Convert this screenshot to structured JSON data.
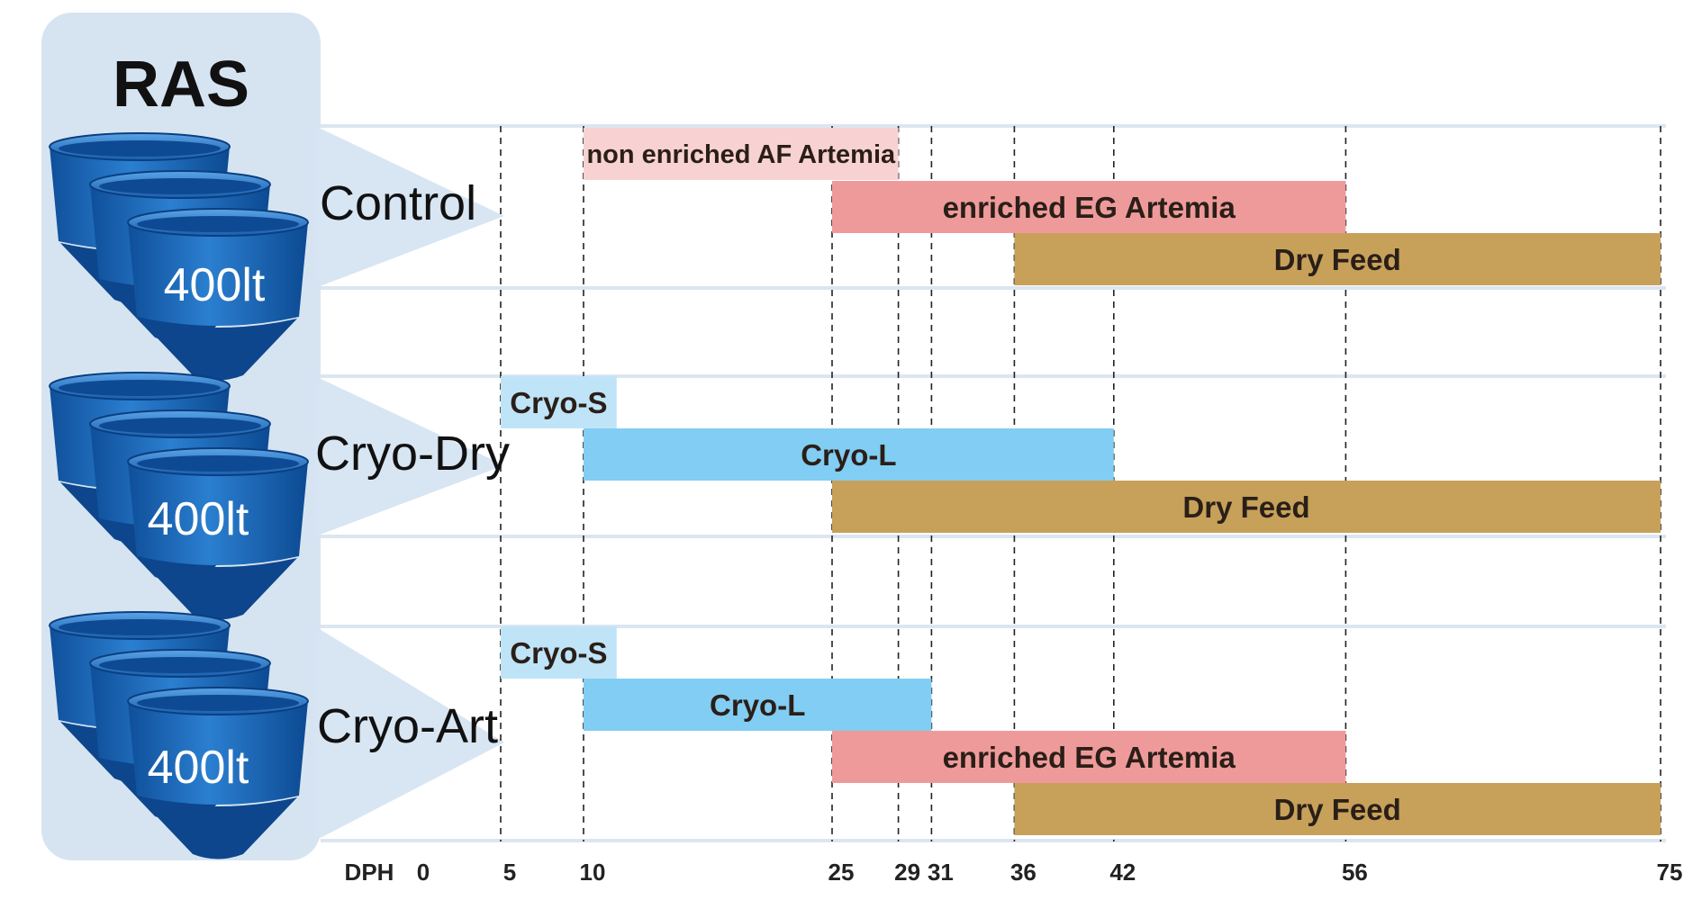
{
  "title": "RAS",
  "axis": {
    "label": "DPH",
    "ticks": [
      0,
      5,
      10,
      25,
      29,
      31,
      36,
      42,
      56,
      75
    ],
    "range": [
      0,
      75
    ]
  },
  "colors": {
    "panel": "#d6e4f2",
    "tank": "#1f6fc0",
    "light_pink": "#f8d2d2",
    "pink": "#ef9a9a",
    "light_blue": "#bfe4f8",
    "blue": "#82cdf3",
    "brown": "#c7a05a",
    "band_line": "#dce6f0"
  },
  "groups": [
    {
      "name": "Control",
      "tank_label": "400lt",
      "bars": [
        {
          "label": "non enriched AF Artemia",
          "start": 10,
          "end": 29,
          "color": "light_pink"
        },
        {
          "label": "enriched EG Artemia",
          "start": 25,
          "end": 56,
          "color": "pink"
        },
        {
          "label": "Dry Feed",
          "start": 36,
          "end": 75,
          "color": "brown"
        }
      ]
    },
    {
      "name": "Cryo-Dry",
      "tank_label": "400lt",
      "bars": [
        {
          "label": "Cryo-S",
          "start": 5,
          "end": 12,
          "color": "light_blue"
        },
        {
          "label": "Cryo-L",
          "start": 10,
          "end": 42,
          "color": "blue"
        },
        {
          "label": "Dry Feed",
          "start": 25,
          "end": 75,
          "color": "brown"
        }
      ]
    },
    {
      "name": "Cryo-Art",
      "tank_label": "400lt",
      "bars": [
        {
          "label": "Cryo-S",
          "start": 5,
          "end": 12,
          "color": "light_blue"
        },
        {
          "label": "Cryo-L",
          "start": 10,
          "end": 31,
          "color": "blue"
        },
        {
          "label": "enriched EG Artemia",
          "start": 25,
          "end": 56,
          "color": "pink"
        },
        {
          "label": "Dry Feed",
          "start": 36,
          "end": 75,
          "color": "brown"
        }
      ]
    }
  ]
}
